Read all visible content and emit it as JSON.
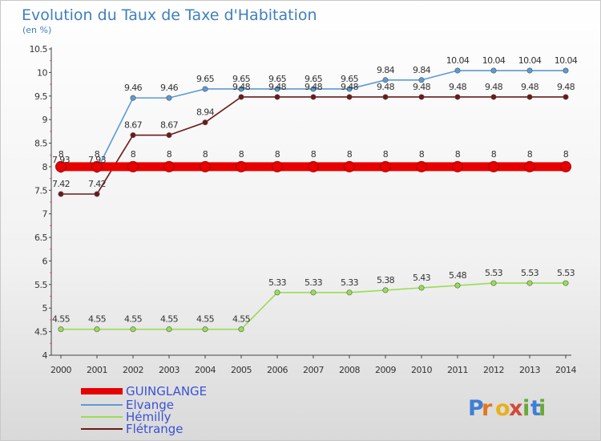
{
  "chart_data": {
    "type": "line",
    "title": "Evolution du Taux de Taxe d'Habitation",
    "subtitle": "(en %)",
    "x": [
      "2000",
      "2001",
      "2002",
      "2003",
      "2004",
      "2005",
      "2006",
      "2007",
      "2008",
      "2009",
      "2010",
      "2011",
      "2012",
      "2013",
      "2014"
    ],
    "ylim": [
      4,
      10.5
    ],
    "yticks": [
      "4",
      "4.5",
      "5",
      "5.5",
      "6",
      "6.5",
      "7",
      "7.5",
      "8",
      "8.5",
      "9",
      "9.5",
      "10",
      "10.5"
    ],
    "grid": false,
    "legend_position": "bottom-left",
    "series": [
      {
        "name": "GUINGLANGE",
        "color": "#e60000",
        "values": [
          8,
          8,
          8,
          8,
          8,
          8,
          8,
          8,
          8,
          8,
          8,
          8,
          8,
          8,
          8
        ],
        "labels": [
          "8",
          "8",
          "8",
          "8",
          "8",
          "8",
          "8",
          "8",
          "8",
          "8",
          "8",
          "8",
          "8",
          "8",
          "8"
        ]
      },
      {
        "name": "Elvange",
        "color": "#5b9bd5",
        "values": [
          7.93,
          7.93,
          9.46,
          9.46,
          9.65,
          9.65,
          9.65,
          9.65,
          9.65,
          9.84,
          9.84,
          10.04,
          10.04,
          10.04,
          10.04
        ],
        "labels": [
          "7.93",
          "7.93",
          "9.46",
          "9.46",
          "9.65",
          "9.65",
          "9.65",
          "9.65",
          "9.65",
          "9.84",
          "9.84",
          "10.04",
          "10.04",
          "10.04",
          "10.04"
        ]
      },
      {
        "name": "Hémilly",
        "color": "#99dd55",
        "values": [
          4.55,
          4.55,
          4.55,
          4.55,
          4.55,
          4.55,
          5.33,
          5.33,
          5.33,
          5.38,
          5.43,
          5.48,
          5.53,
          5.53,
          5.53
        ],
        "labels": [
          "4.55",
          "4.55",
          "4.55",
          "4.55",
          "4.55",
          "4.55",
          "5.33",
          "5.33",
          "5.33",
          "5.38",
          "5.43",
          "5.48",
          "5.53",
          "5.53",
          "5.53"
        ]
      },
      {
        "name": "Flétrange",
        "color": "#6b1a1a",
        "values": [
          7.42,
          7.42,
          8.67,
          8.67,
          8.94,
          9.48,
          9.48,
          9.48,
          9.48,
          9.48,
          9.48,
          9.48,
          9.48,
          9.48,
          9.48
        ],
        "labels": [
          "7.42",
          "7.42",
          "8.67",
          "8.67",
          "8.94",
          "9.48",
          "9.48",
          "9.48",
          "9.48",
          "9.48",
          "9.48",
          "9.48",
          "9.48",
          "9.48",
          "9.48"
        ]
      }
    ]
  },
  "brand": {
    "text": "Proxiti"
  }
}
